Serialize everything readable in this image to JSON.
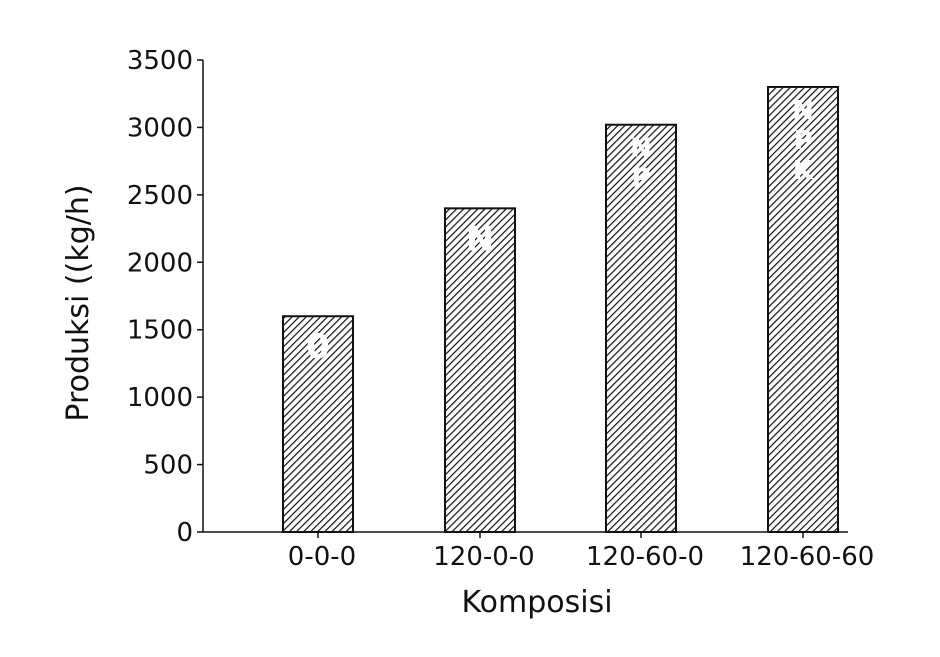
{
  "chart_data": {
    "type": "bar",
    "title": "",
    "xlabel": "Komposisi",
    "ylabel": "Produksi ((kg/h)",
    "categories": [
      "0-0-0",
      "120-0-0",
      "120-60-0",
      "120-60-60"
    ],
    "values": [
      1600,
      2400,
      3020,
      3300
    ],
    "bar_labels": [
      [
        "0"
      ],
      [
        "N"
      ],
      [
        "N",
        "P"
      ],
      [
        "N",
        "P",
        "K"
      ]
    ],
    "ylim": [
      0,
      3500
    ],
    "yticks": [
      "0",
      "500",
      "1000",
      "1500",
      "2000",
      "2500",
      "3000",
      "3500"
    ],
    "grid": false,
    "bar_fill": "diagonal-hatch",
    "colors": {
      "bar_stroke": "#111111",
      "hatch": "#111111",
      "background": "#ffffff"
    }
  }
}
